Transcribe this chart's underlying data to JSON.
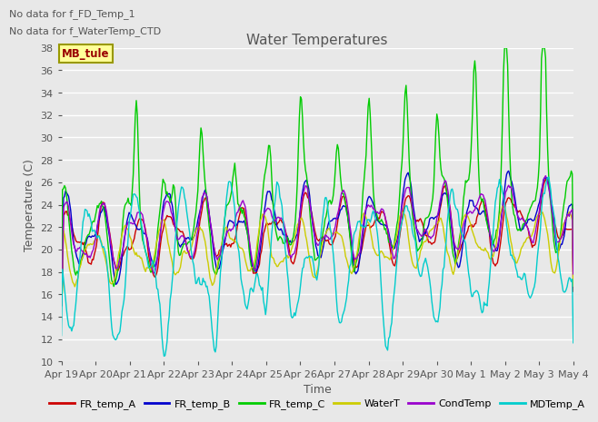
{
  "title": "Water Temperatures",
  "xlabel": "Time",
  "ylabel": "Temperature (C)",
  "ylim": [
    10,
    38
  ],
  "yticks": [
    10,
    12,
    14,
    16,
    18,
    20,
    22,
    24,
    26,
    28,
    30,
    32,
    34,
    36,
    38
  ],
  "annotations": [
    "No data for f_FD_Temp_1",
    "No data for f_WaterTemp_CTD"
  ],
  "mb_tule_label": "MB_tule",
  "x_labels": [
    "Apr 19",
    "Apr 20",
    "Apr 21",
    "Apr 22",
    "Apr 23",
    "Apr 24",
    "Apr 25",
    "Apr 26",
    "Apr 27",
    "Apr 28",
    "Apr 29",
    "Apr 30",
    "May 1",
    "May 2",
    "May 3",
    "May 4"
  ],
  "series_names": [
    "FR_temp_A",
    "FR_temp_B",
    "FR_temp_C",
    "WaterT",
    "CondTemp",
    "MDTemp_A"
  ],
  "series_colors": [
    "#cc0000",
    "#0000cc",
    "#00cc00",
    "#cccc00",
    "#9900cc",
    "#00cccc"
  ],
  "lw": 1.0,
  "background_color": "#e8e8e8",
  "grid_color": "#ffffff",
  "n_points": 500,
  "seed": 7
}
